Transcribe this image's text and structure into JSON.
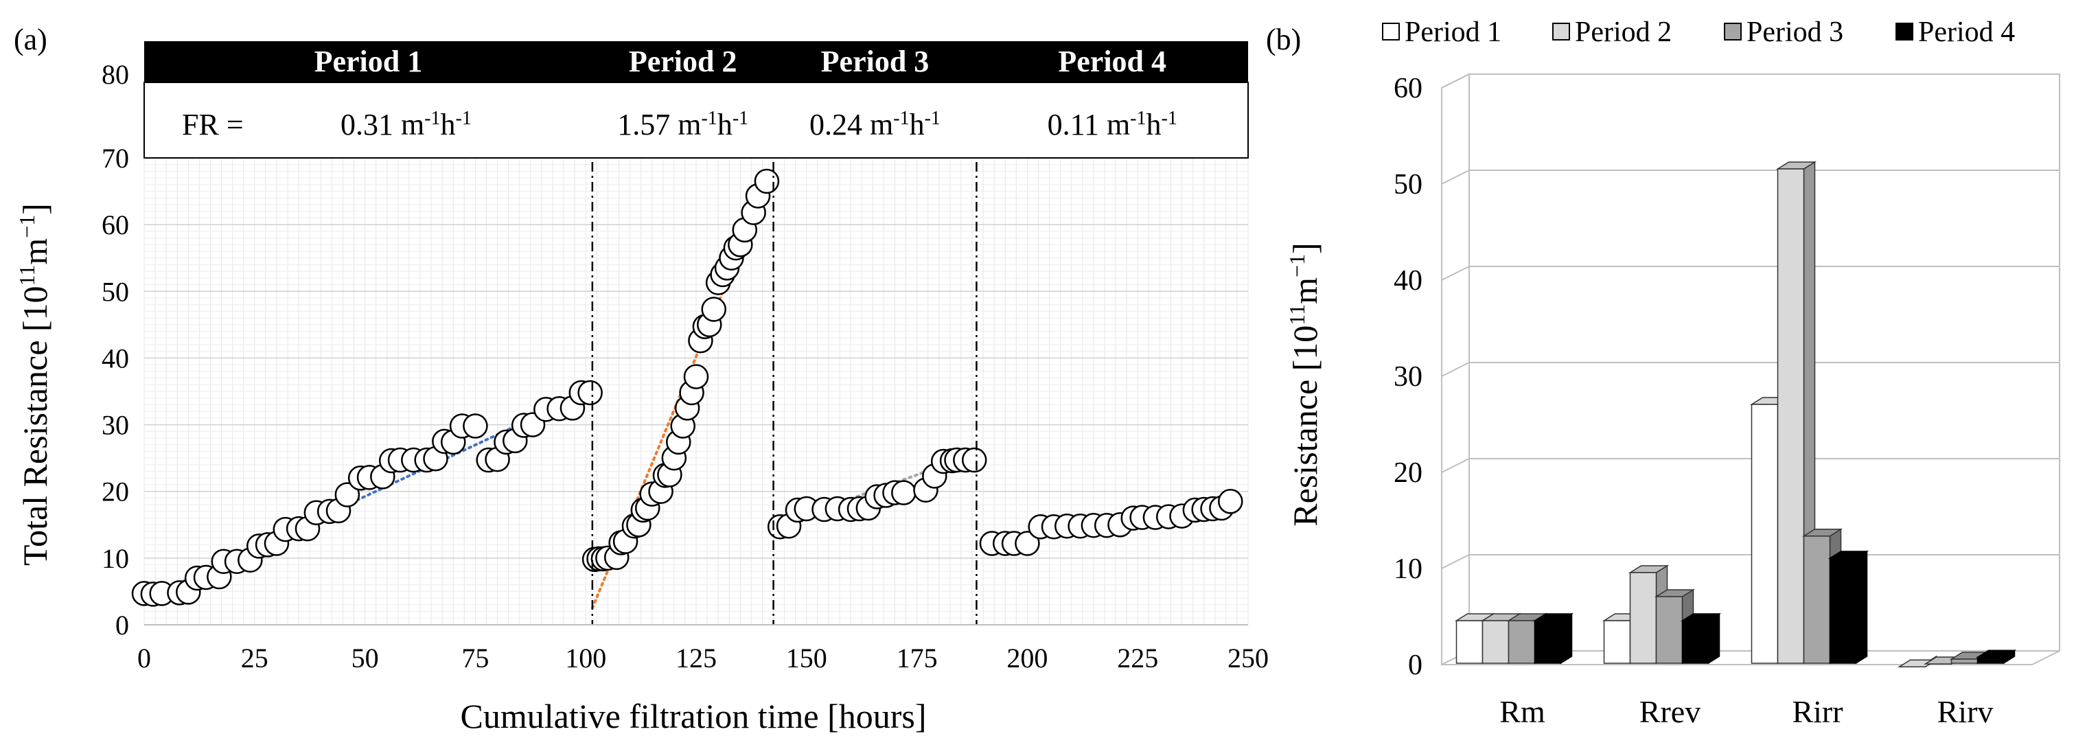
{
  "figure": {
    "panel_a_label": "(a)",
    "panel_b_label": "(b)"
  },
  "colors": {
    "trend_period1": "#4472C4",
    "trend_period2": "#ED7D31",
    "trend_period3": "#A5A5A5",
    "trend_period4": "#FFC000",
    "bar_period1": "#FFFFFF",
    "bar_period2": "#D9D9D9",
    "bar_period3": "#A6A6A6",
    "bar_period4": "#000000"
  },
  "chart_data": [
    {
      "type": "scatter",
      "panel": "(a)",
      "xlabel": "Cumulative filtration time [hours]",
      "ylabel_main": "Total Resistance [10",
      "ylabel_sup": "11",
      "ylabel_unit": "m",
      "ylabel_unit_sup": "−1",
      "ylabel_close": "]",
      "xlim": [
        0,
        250
      ],
      "ylim": [
        0,
        80
      ],
      "xticks": [
        0,
        25,
        50,
        75,
        100,
        125,
        150,
        175,
        200,
        225,
        250
      ],
      "yticks": [
        0,
        10,
        20,
        30,
        40,
        50,
        60,
        70,
        80
      ],
      "grid": true,
      "fr_prefix": "FR =",
      "periods": [
        {
          "name": "Period 1",
          "fr": "0.31 m",
          "fr_sup1": "-1",
          "fr_mid": "h",
          "fr_sup2": "-1",
          "x_start": 0,
          "x_end": 101.5
        },
        {
          "name": "Period 2",
          "fr": "1.57 m",
          "fr_sup1": "-1",
          "fr_mid": "h",
          "fr_sup2": "-1",
          "x_start": 101.5,
          "x_end": 142.5
        },
        {
          "name": "Period 3",
          "fr": "0.24 m",
          "fr_sup1": "-1",
          "fr_mid": "h",
          "fr_sup2": "-1",
          "x_start": 142.5,
          "x_end": 188.5
        },
        {
          "name": "Period 4",
          "fr": "0.11 m",
          "fr_sup1": "-1",
          "fr_mid": "h",
          "fr_sup2": "-1",
          "x_start": 188.5,
          "x_end": 250
        }
      ],
      "trendlines": [
        {
          "period": "Period 1",
          "x": [
            0,
            101
          ],
          "y": [
            3.8,
            35.0
          ]
        },
        {
          "period": "Period 2",
          "x": [
            101.5,
            142
          ],
          "y": [
            2.5,
            67.5
          ]
        },
        {
          "period": "Period 3",
          "x": [
            143,
            188
          ],
          "y": [
            14.8,
            25.6
          ]
        },
        {
          "period": "Period 4",
          "x": [
            190,
            246
          ],
          "y": [
            12.2,
            18.3
          ]
        }
      ],
      "series": [
        {
          "period": "Period 1",
          "points": [
            [
              0,
              4.7
            ],
            [
              2,
              4.6
            ],
            [
              4,
              4.7
            ],
            [
              8,
              4.8
            ],
            [
              10,
              4.9
            ],
            [
              12,
              7.0
            ],
            [
              14,
              7.1
            ],
            [
              17,
              7.2
            ],
            [
              18,
              9.5
            ],
            [
              21,
              9.5
            ],
            [
              24,
              9.7
            ],
            [
              26,
              11.8
            ],
            [
              28,
              12.0
            ],
            [
              30,
              12.2
            ],
            [
              32,
              14.3
            ],
            [
              35,
              14.4
            ],
            [
              37,
              14.4
            ],
            [
              39,
              16.8
            ],
            [
              42,
              17.0
            ],
            [
              44,
              17.1
            ],
            [
              46,
              19.5
            ],
            [
              49,
              22.0
            ],
            [
              51,
              22.1
            ],
            [
              54,
              22.2
            ],
            [
              56,
              24.6
            ],
            [
              58,
              24.7
            ],
            [
              61,
              24.7
            ],
            [
              64,
              24.7
            ],
            [
              66,
              24.9
            ],
            [
              68,
              27.5
            ],
            [
              70,
              27.4
            ],
            [
              72,
              29.8
            ],
            [
              75,
              29.8
            ],
            [
              78,
              24.7
            ],
            [
              80,
              24.8
            ],
            [
              82,
              27.4
            ],
            [
              84,
              27.6
            ],
            [
              86,
              29.9
            ],
            [
              88,
              30.0
            ],
            [
              91,
              32.3
            ],
            [
              94,
              32.4
            ],
            [
              97,
              32.5
            ],
            [
              99,
              34.8
            ],
            [
              101,
              34.8
            ]
          ]
        },
        {
          "period": "Period 2",
          "points": [
            [
              102,
              9.8
            ],
            [
              103,
              9.9
            ],
            [
              104,
              9.9
            ],
            [
              105,
              10.0
            ],
            [
              107,
              10.1
            ],
            [
              108,
              12.3
            ],
            [
              109,
              12.5
            ],
            [
              111,
              14.8
            ],
            [
              112,
              15.0
            ],
            [
              113,
              17.2
            ],
            [
              114,
              17.5
            ],
            [
              115,
              19.6
            ],
            [
              117,
              20.0
            ],
            [
              118,
              22.4
            ],
            [
              119,
              22.5
            ],
            [
              120,
              25.0
            ],
            [
              121,
              27.4
            ],
            [
              122,
              29.8
            ],
            [
              123,
              32.5
            ],
            [
              124,
              34.8
            ],
            [
              125,
              37.2
            ],
            [
              126,
              42.6
            ],
            [
              127,
              44.7
            ],
            [
              128,
              45.0
            ],
            [
              129,
              47.3
            ],
            [
              130,
              51.3
            ],
            [
              131,
              52.5
            ],
            [
              132,
              53.5
            ],
            [
              133,
              55.0
            ],
            [
              134,
              56.5
            ],
            [
              135,
              57.0
            ],
            [
              136,
              59.2
            ],
            [
              138,
              61.8
            ],
            [
              139,
              64.3
            ],
            [
              141,
              66.5
            ]
          ]
        },
        {
          "period": "Period 3",
          "points": [
            [
              144,
              14.7
            ],
            [
              146,
              14.8
            ],
            [
              148,
              17.2
            ],
            [
              150,
              17.4
            ],
            [
              154,
              17.3
            ],
            [
              157,
              17.4
            ],
            [
              160,
              17.3
            ],
            [
              162,
              17.4
            ],
            [
              164,
              17.5
            ],
            [
              166,
              19.2
            ],
            [
              168,
              19.4
            ],
            [
              170,
              19.8
            ],
            [
              172,
              19.8
            ],
            [
              177,
              20.2
            ],
            [
              179,
              22.3
            ],
            [
              181,
              24.5
            ],
            [
              183,
              24.6
            ],
            [
              184,
              24.7
            ],
            [
              186,
              24.7
            ],
            [
              188,
              24.7
            ]
          ]
        },
        {
          "period": "Period 4",
          "points": [
            [
              192,
              12.2
            ],
            [
              195,
              12.2
            ],
            [
              197,
              12.2
            ],
            [
              200,
              12.2
            ],
            [
              203,
              14.7
            ],
            [
              206,
              14.7
            ],
            [
              209,
              14.8
            ],
            [
              212,
              14.8
            ],
            [
              215,
              14.9
            ],
            [
              218,
              14.9
            ],
            [
              221,
              15.0
            ],
            [
              224,
              16.0
            ],
            [
              226,
              16.1
            ],
            [
              229,
              16.1
            ],
            [
              232,
              16.2
            ],
            [
              235,
              16.3
            ],
            [
              238,
              17.2
            ],
            [
              240,
              17.3
            ],
            [
              242,
              17.4
            ],
            [
              244,
              17.5
            ],
            [
              246,
              18.5
            ]
          ]
        }
      ]
    },
    {
      "type": "bar",
      "panel": "(b)",
      "ylabel_main": "Resistance [10",
      "ylabel_sup": "11",
      "ylabel_unit": "m",
      "ylabel_unit_sup": "−1",
      "ylabel_close": "]",
      "ylim": [
        0,
        60
      ],
      "yticks": [
        0,
        10,
        20,
        30,
        40,
        50,
        60
      ],
      "grid": true,
      "legend_position": "top",
      "categories": [
        "Rm",
        "Rrev",
        "Rirr",
        "Rirv"
      ],
      "series": [
        {
          "name": "Period 1",
          "values": [
            5.0,
            5.0,
            27.5,
            0.2
          ]
        },
        {
          "name": "Period 2",
          "values": [
            5.0,
            10.0,
            52.0,
            0.5
          ]
        },
        {
          "name": "Period 3",
          "values": [
            5.0,
            7.5,
            13.8,
            1.0
          ]
        },
        {
          "name": "Period 4",
          "values": [
            5.0,
            5.0,
            11.5,
            1.2
          ]
        }
      ]
    }
  ]
}
